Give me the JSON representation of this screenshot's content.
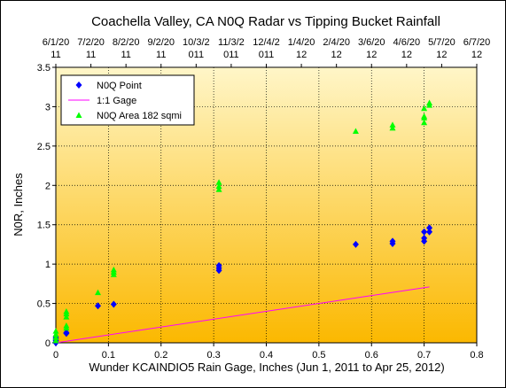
{
  "chart_data": {
    "type": "scatter",
    "title": "Coachella Valley, CA N0Q Radar vs Tipping Bucket Rainfall",
    "xlabel": "Wunder KCAINDIO5 Rain Gage, Inches (Jun 1, 2011 to Apr 25, 2012)",
    "ylabel": "N0R, Inches",
    "xlim": [
      0,
      0.8
    ],
    "ylim": [
      0,
      3.5
    ],
    "x_ticks": [
      "0",
      "0.1",
      "0.2",
      "0.3",
      "0.4",
      "0.5",
      "0.6",
      "0.7",
      "0.8"
    ],
    "y_ticks": [
      "0",
      "0.5",
      "1",
      "1.5",
      "2",
      "2.5",
      "3",
      "3.5"
    ],
    "top_axis": {
      "dates": [
        "6/1/20",
        "7/2/20",
        "8/2/20",
        "9/2/20",
        "10/3/2",
        "11/3/2",
        "12/4/2",
        "1/4/20",
        "2/4/20",
        "3/6/20",
        "4/6/20",
        "5/7/20",
        "6/7/20"
      ],
      "years": [
        "11",
        "11",
        "11",
        "11",
        "011",
        "011",
        "011",
        "12",
        "12",
        "12",
        "12",
        "12",
        "12"
      ]
    },
    "grid": "horizontal and vertical dotted",
    "background_gradient": [
      "#fff6c8",
      "#fbb800"
    ],
    "legend_position": "top-left",
    "series": [
      {
        "name": "N0Q Point",
        "marker": "diamond",
        "color": "#0000ff",
        "points": [
          [
            0.0,
            0.0
          ],
          [
            0.0,
            0.01
          ],
          [
            0.0,
            0.03
          ],
          [
            0.0,
            0.05
          ],
          [
            0.0,
            0.07
          ],
          [
            0.02,
            0.12
          ],
          [
            0.02,
            0.13
          ],
          [
            0.08,
            0.47
          ],
          [
            0.11,
            0.49
          ],
          [
            0.31,
            0.92
          ],
          [
            0.31,
            0.95
          ],
          [
            0.31,
            0.98
          ],
          [
            0.57,
            1.25
          ],
          [
            0.64,
            1.26
          ],
          [
            0.64,
            1.29
          ],
          [
            0.7,
            1.29
          ],
          [
            0.7,
            1.33
          ],
          [
            0.7,
            1.41
          ],
          [
            0.71,
            1.41
          ],
          [
            0.71,
            1.46
          ]
        ]
      },
      {
        "name": "1:1 Gage",
        "marker": "line",
        "color": "#ff00ff",
        "points": [
          [
            0,
            0
          ],
          [
            0.71,
            0.71
          ]
        ]
      },
      {
        "name": "N0Q  Area 182 sqmi",
        "marker": "triangle",
        "color": "#00ff00",
        "points": [
          [
            0.0,
            0.03
          ],
          [
            0.0,
            0.07
          ],
          [
            0.0,
            0.11
          ],
          [
            0.0,
            0.15
          ],
          [
            0.02,
            0.19
          ],
          [
            0.02,
            0.22
          ],
          [
            0.02,
            0.33
          ],
          [
            0.02,
            0.37
          ],
          [
            0.02,
            0.4
          ],
          [
            0.08,
            0.64
          ],
          [
            0.11,
            0.87
          ],
          [
            0.11,
            0.9
          ],
          [
            0.11,
            0.93
          ],
          [
            0.31,
            1.95
          ],
          [
            0.31,
            1.99
          ],
          [
            0.31,
            2.04
          ],
          [
            0.57,
            2.69
          ],
          [
            0.64,
            2.73
          ],
          [
            0.64,
            2.77
          ],
          [
            0.7,
            2.8
          ],
          [
            0.7,
            2.86
          ],
          [
            0.7,
            2.88
          ],
          [
            0.7,
            2.98
          ],
          [
            0.71,
            3.02
          ],
          [
            0.71,
            3.05
          ]
        ]
      }
    ]
  }
}
